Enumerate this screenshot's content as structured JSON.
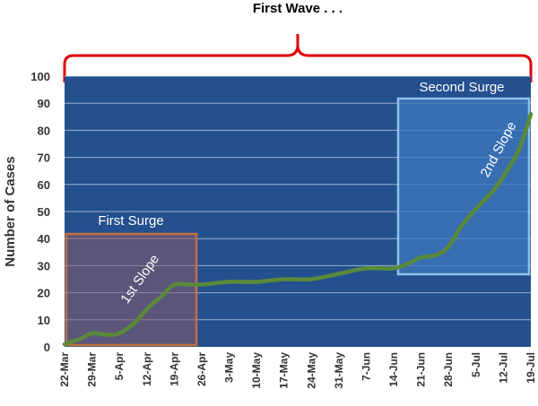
{
  "chart_data": {
    "type": "line",
    "title": "First Wave . . .",
    "xlabel": "",
    "ylabel": "Number of Cases",
    "ylim": [
      0,
      100
    ],
    "yticks": [
      0,
      10,
      20,
      30,
      40,
      50,
      60,
      70,
      80,
      90,
      100
    ],
    "x_tick_labels": [
      "22-Mar",
      "29-Mar",
      "5-Apr",
      "12-Apr",
      "19-Apr",
      "26-Apr",
      "3-May",
      "10-May",
      "17-May",
      "24-May",
      "31-May",
      "7-Jun",
      "14-Jun",
      "21-Jun",
      "28-Jun",
      "5-Jul",
      "12-Jul",
      "19-Jul"
    ],
    "grid": true,
    "series": [
      {
        "x": [
          "22-Mar",
          "26-Mar",
          "29-Mar",
          "2-Apr",
          "5-Apr",
          "9-Apr",
          "12-Apr",
          "16-Apr",
          "19-Apr",
          "23-Apr",
          "26-Apr",
          "3-May",
          "10-May",
          "17-May",
          "24-May",
          "31-May",
          "7-Jun",
          "14-Jun",
          "18-Jun",
          "21-Jun",
          "25-Jun",
          "28-Jun",
          "1-Jul",
          "5-Jul",
          "9-Jul",
          "12-Jul",
          "16-Jul",
          "19-Jul"
        ],
        "values": [
          1,
          3,
          5,
          4.5,
          5,
          9,
          14,
          19,
          23,
          23,
          23,
          24,
          24,
          25,
          25,
          27,
          29,
          29,
          31,
          33,
          34,
          37,
          44,
          51,
          57,
          63,
          73,
          86
        ]
      }
    ],
    "annotations": {
      "first_surge": "First Surge",
      "second_surge": "Second Surge",
      "first_slope": "1st Slope",
      "second_slope": "2nd Slope"
    },
    "colors": {
      "plot_background": "#24508F",
      "line": "#5A8A3A",
      "first_surge_box": "#C07040",
      "second_surge_box": "#8EC2E8",
      "bracket": "#E00000"
    }
  }
}
